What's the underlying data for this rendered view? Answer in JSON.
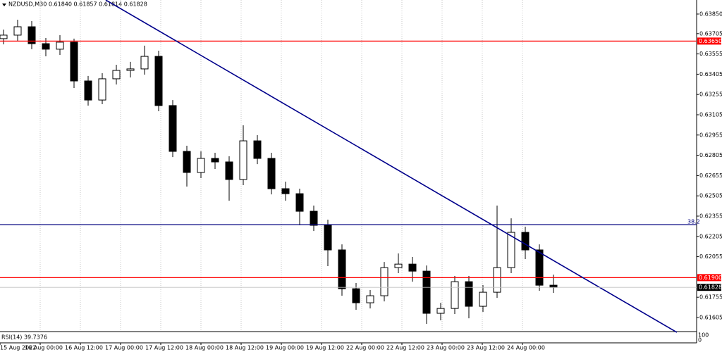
{
  "chart_data": {
    "type": "candlestick",
    "title": "NZDUSD,M30  0.61840 0.61857 0.61814 0.61828",
    "x": [
      0,
      1,
      2,
      3,
      4,
      5,
      6,
      7,
      8,
      9,
      10,
      11,
      12,
      13,
      14,
      15,
      16,
      17,
      18,
      19,
      20,
      21,
      22,
      23,
      24,
      25,
      26,
      27,
      28,
      29,
      30,
      31,
      32,
      33,
      34,
      35,
      36,
      37,
      38,
      39
    ],
    "open": [
      0.63668,
      0.63694,
      0.63756,
      0.63631,
      0.6359,
      0.63642,
      0.63355,
      0.63214,
      0.63371,
      0.63433,
      0.63444,
      0.63537,
      0.63173,
      0.62834,
      0.62678,
      0.62782,
      0.62756,
      0.62626,
      0.62912,
      0.62782,
      0.62558,
      0.62521,
      0.62391,
      0.62287,
      0.62105,
      0.61818,
      0.61714,
      0.61766,
      0.61974,
      0.62,
      0.61948,
      0.61636,
      0.61672,
      0.6187,
      0.61688,
      0.61792,
      0.61974,
      0.62235,
      0.62105,
      0.61844
    ],
    "high": [
      0.63735,
      0.63808,
      0.63798,
      0.63673,
      0.63694,
      0.63668,
      0.63392,
      0.63412,
      0.63475,
      0.63496,
      0.63616,
      0.63579,
      0.63214,
      0.62876,
      0.62834,
      0.62824,
      0.62798,
      0.63027,
      0.62954,
      0.62824,
      0.6261,
      0.62558,
      0.62433,
      0.62329,
      0.62146,
      0.6186,
      0.61808,
      0.62016,
      0.62079,
      0.62053,
      0.6199,
      0.61714,
      0.61912,
      0.61912,
      0.61844,
      0.62433,
      0.62339,
      0.62277,
      0.62146,
      0.61922
    ],
    "low": [
      0.63626,
      0.63652,
      0.6359,
      0.63537,
      0.63548,
      0.63303,
      0.63173,
      0.63183,
      0.63329,
      0.63381,
      0.63402,
      0.63131,
      0.62792,
      0.62574,
      0.62636,
      0.62704,
      0.62469,
      0.62584,
      0.6274,
      0.62516,
      0.62469,
      0.62287,
      0.62245,
      0.61985,
      0.61766,
      0.61662,
      0.61672,
      0.61724,
      0.61933,
      0.6187,
      0.61558,
      0.61584,
      0.61631,
      0.61599,
      0.61646,
      0.6175,
      0.61933,
      0.62037,
      0.61803,
      0.61787
    ],
    "close": [
      0.63694,
      0.63756,
      0.63631,
      0.6359,
      0.63642,
      0.63355,
      0.63214,
      0.63371,
      0.63433,
      0.63444,
      0.63537,
      0.63173,
      0.62834,
      0.62678,
      0.62782,
      0.62756,
      0.62626,
      0.62912,
      0.62782,
      0.62558,
      0.62521,
      0.62391,
      0.62287,
      0.62105,
      0.61818,
      0.61714,
      0.61766,
      0.61974,
      0.62,
      0.61948,
      0.61636,
      0.61672,
      0.6187,
      0.61688,
      0.61792,
      0.61974,
      0.62235,
      0.62105,
      0.61844,
      0.61828
    ],
    "xlim": [
      -0.25,
      49.15
    ],
    "xticks": [
      {
        "value": -0.25,
        "label": "15 Aug 2022"
      },
      {
        "value": 2.6,
        "label": "16 Aug 00:00"
      },
      {
        "value": 5.45,
        "label": "16 Aug 12:00"
      },
      {
        "value": 8.3,
        "label": "17 Aug 00:00"
      },
      {
        "value": 11.15,
        "label": "17 Aug 12:00"
      },
      {
        "value": 14,
        "label": "18 Aug 00:00"
      },
      {
        "value": 16.85,
        "label": "18 Aug 12:00"
      },
      {
        "value": 19.7,
        "label": "19 Aug 00:00"
      },
      {
        "value": 22.55,
        "label": "19 Aug 12:00"
      },
      {
        "value": 25.4,
        "label": "22 Aug 00:00"
      },
      {
        "value": 28.25,
        "label": "22 Aug 12:00"
      },
      {
        "value": 31.1,
        "label": "23 Aug 00:00"
      },
      {
        "value": 33.95,
        "label": "23 Aug 12:00"
      },
      {
        "value": 36.8,
        "label": "24 Aug 00:00"
      }
    ],
    "ylim": [
      0.61506,
      0.63954
    ],
    "yticks": [
      {
        "value": 0.6385,
        "label": "0.63850"
      },
      {
        "value": 0.63705,
        "label": "0.63705"
      },
      {
        "value": 0.63555,
        "label": "0.63555"
      },
      {
        "value": 0.63405,
        "label": "0.63405"
      },
      {
        "value": 0.63255,
        "label": "0.63255"
      },
      {
        "value": 0.63105,
        "label": "0.63105"
      },
      {
        "value": 0.62955,
        "label": "0.62955"
      },
      {
        "value": 0.62805,
        "label": "0.62805"
      },
      {
        "value": 0.62655,
        "label": "0.62655"
      },
      {
        "value": 0.62505,
        "label": "0.62505"
      },
      {
        "value": 0.62355,
        "label": "0.62355"
      },
      {
        "value": 0.62205,
        "label": "0.62205"
      },
      {
        "value": 0.62055,
        "label": "0.62055"
      },
      {
        "value": 0.61755,
        "label": "0.61755"
      },
      {
        "value": 0.61605,
        "label": "0.61605"
      }
    ],
    "hlines": [
      {
        "value": 0.6365,
        "label": "0.63650",
        "color": "#ff0000"
      },
      {
        "value": 0.619,
        "label": "0.61900",
        "color": "#ff0000"
      },
      {
        "value": 0.62292,
        "name": "38.2",
        "color": "#00007f"
      }
    ],
    "trendline": {
      "x": [
        7.25,
        47.75
      ],
      "y": [
        0.63954,
        0.61495
      ],
      "color": "#00008b"
    },
    "last_price": {
      "value": 0.61828,
      "label": "0.61828"
    },
    "indicator": {
      "title": "RSI(14) 39.7376",
      "ylabels": [
        "100",
        "0"
      ]
    }
  }
}
